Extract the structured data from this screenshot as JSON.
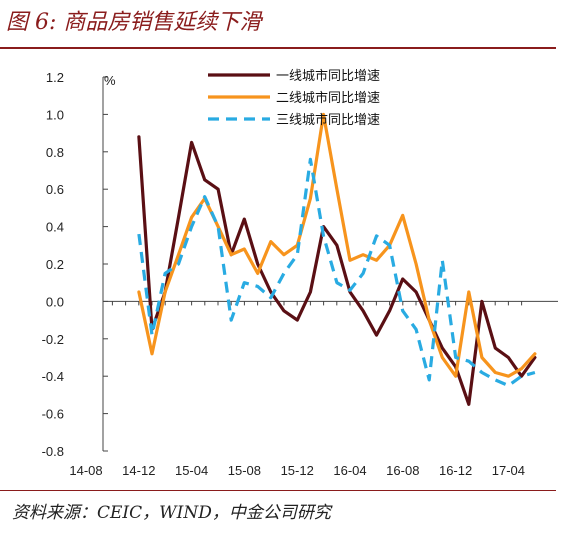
{
  "header": {
    "title": "图 6:  商品房销售延续下滑"
  },
  "footer": {
    "source": "资料来源：CEIC，WIND，中金公司研究"
  },
  "colors": {
    "brand_dark_red": "#8a1c1c",
    "tier1": "#5a0f14",
    "tier2": "#f7941d",
    "tier3": "#29abe2"
  },
  "chart_data": {
    "type": "line",
    "ylabel": "%",
    "ylim": [
      -0.8,
      1.2
    ],
    "yticks": [
      "1.2",
      "1.0",
      "0.8",
      "0.6",
      "0.4",
      "0.2",
      "0.0",
      "-0.2",
      "-0.4",
      "-0.6",
      "-0.8"
    ],
    "xticks": [
      "14-08",
      "14-12",
      "15-04",
      "15-08",
      "15-12",
      "16-04",
      "16-08",
      "16-12",
      "17-04"
    ],
    "grid": false,
    "legend_position": "top-center",
    "series": [
      {
        "name": "一线城市同比增速",
        "color": "#5a0f14",
        "style": "solid",
        "values": [
          [
            2014.917,
            0.88
          ],
          [
            2015.0,
            -0.15
          ],
          [
            2015.083,
            0.05
          ],
          [
            2015.167,
            0.45
          ],
          [
            2015.25,
            0.85
          ],
          [
            2015.333,
            0.65
          ],
          [
            2015.417,
            0.6
          ],
          [
            2015.5,
            0.25
          ],
          [
            2015.583,
            0.44
          ],
          [
            2015.667,
            0.2
          ],
          [
            2015.75,
            0.05
          ],
          [
            2015.833,
            -0.05
          ],
          [
            2015.917,
            -0.1
          ],
          [
            2016.0,
            0.05
          ],
          [
            2016.083,
            0.4
          ],
          [
            2016.167,
            0.3
          ],
          [
            2016.25,
            0.05
          ],
          [
            2016.333,
            -0.05
          ],
          [
            2016.417,
            -0.18
          ],
          [
            2016.5,
            -0.05
          ],
          [
            2016.583,
            0.12
          ],
          [
            2016.667,
            0.05
          ],
          [
            2016.75,
            -0.1
          ],
          [
            2016.833,
            -0.25
          ],
          [
            2016.917,
            -0.35
          ],
          [
            2017.0,
            -0.55
          ],
          [
            2017.083,
            0.0
          ],
          [
            2017.167,
            -0.25
          ],
          [
            2017.25,
            -0.3
          ],
          [
            2017.333,
            -0.4
          ],
          [
            2017.417,
            -0.3
          ]
        ]
      },
      {
        "name": "二线城市同比增速",
        "color": "#f7941d",
        "style": "solid",
        "values": [
          [
            2014.917,
            0.05
          ],
          [
            2015.0,
            -0.28
          ],
          [
            2015.083,
            0.05
          ],
          [
            2015.167,
            0.25
          ],
          [
            2015.25,
            0.45
          ],
          [
            2015.333,
            0.55
          ],
          [
            2015.417,
            0.4
          ],
          [
            2015.5,
            0.25
          ],
          [
            2015.583,
            0.28
          ],
          [
            2015.667,
            0.15
          ],
          [
            2015.75,
            0.32
          ],
          [
            2015.833,
            0.25
          ],
          [
            2015.917,
            0.3
          ],
          [
            2016.0,
            0.55
          ],
          [
            2016.083,
            1.0
          ],
          [
            2016.167,
            0.6
          ],
          [
            2016.25,
            0.22
          ],
          [
            2016.333,
            0.25
          ],
          [
            2016.417,
            0.22
          ],
          [
            2016.5,
            0.3
          ],
          [
            2016.583,
            0.46
          ],
          [
            2016.667,
            0.2
          ],
          [
            2016.75,
            -0.1
          ],
          [
            2016.833,
            -0.3
          ],
          [
            2016.917,
            -0.4
          ],
          [
            2017.0,
            0.05
          ],
          [
            2017.083,
            -0.3
          ],
          [
            2017.167,
            -0.38
          ],
          [
            2017.25,
            -0.4
          ],
          [
            2017.333,
            -0.36
          ],
          [
            2017.417,
            -0.28
          ]
        ]
      },
      {
        "name": "三线城市同比增速",
        "color": "#29abe2",
        "style": "dashed",
        "values": [
          [
            2014.917,
            0.36
          ],
          [
            2015.0,
            -0.18
          ],
          [
            2015.083,
            0.15
          ],
          [
            2015.167,
            0.2
          ],
          [
            2015.25,
            0.4
          ],
          [
            2015.333,
            0.56
          ],
          [
            2015.417,
            0.4
          ],
          [
            2015.5,
            -0.1
          ],
          [
            2015.583,
            0.1
          ],
          [
            2015.667,
            0.08
          ],
          [
            2015.75,
            0.02
          ],
          [
            2015.833,
            0.15
          ],
          [
            2015.917,
            0.25
          ],
          [
            2016.0,
            0.76
          ],
          [
            2016.083,
            0.35
          ],
          [
            2016.167,
            0.1
          ],
          [
            2016.25,
            0.06
          ],
          [
            2016.333,
            0.15
          ],
          [
            2016.417,
            0.35
          ],
          [
            2016.5,
            0.3
          ],
          [
            2016.583,
            -0.05
          ],
          [
            2016.667,
            -0.15
          ],
          [
            2016.75,
            -0.42
          ],
          [
            2016.833,
            0.22
          ],
          [
            2016.917,
            -0.3
          ],
          [
            2017.0,
            -0.32
          ],
          [
            2017.083,
            -0.38
          ],
          [
            2017.167,
            -0.42
          ],
          [
            2017.25,
            -0.45
          ],
          [
            2017.333,
            -0.4
          ],
          [
            2017.417,
            -0.38
          ]
        ]
      }
    ]
  }
}
